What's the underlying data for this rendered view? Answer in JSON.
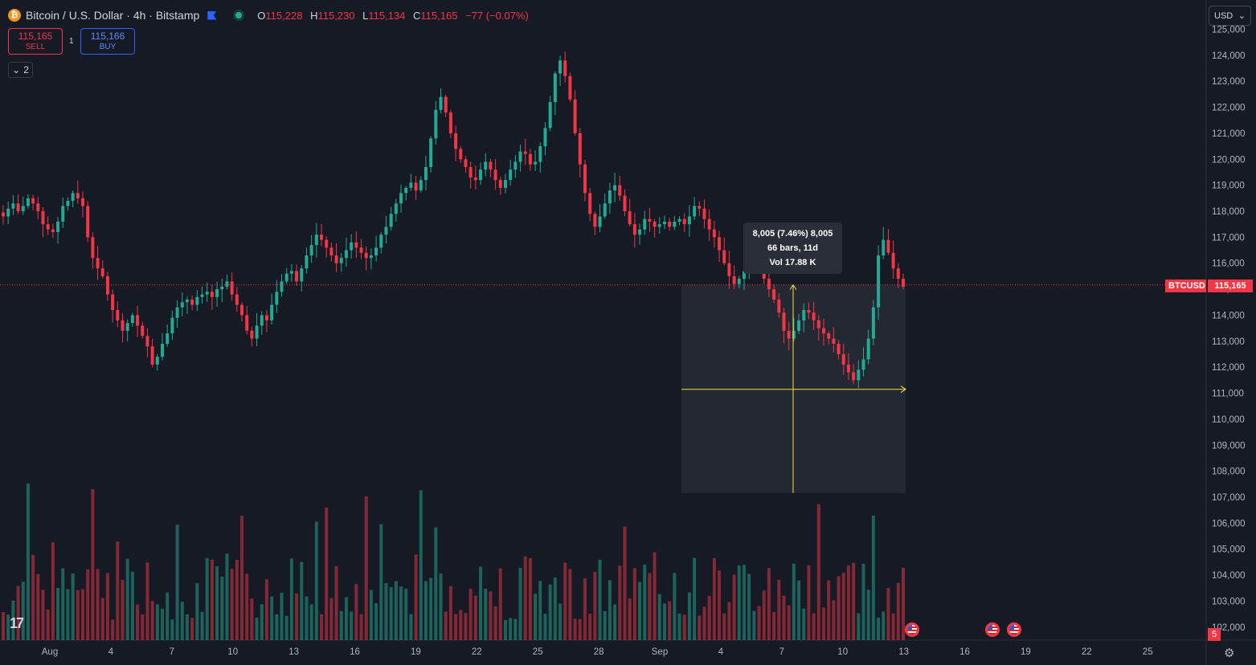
{
  "header": {
    "symbol_icon": "bitcoin-icon",
    "title": "Bitcoin / U.S. Dollar · 4h · Bitstamp",
    "ohlc": {
      "o_label": "O",
      "o": "115,228",
      "h_label": "H",
      "h": "115,230",
      "l_label": "L",
      "l": "115,134",
      "c_label": "C",
      "c": "115,165",
      "change": "−77 (−0.07%)"
    }
  },
  "trade": {
    "sell_price": "115,165",
    "sell_label": "SELL",
    "spread": "1",
    "buy_price": "115,166",
    "buy_label": "BUY"
  },
  "indicators_toggle": "2",
  "currency": "USD",
  "tooltip": {
    "line1": "8,005 (7.46%) 8,005",
    "line2": "66 bars, 11d",
    "line3": "Vol 17.88 K"
  },
  "last_price": {
    "symbol": "BTCUSD",
    "price": "115,165"
  },
  "event_badge_count": "5",
  "colors": {
    "up": "#22ab94",
    "down": "#f23645",
    "background": "#161a25",
    "measure": "#f0e442"
  },
  "chart_data": {
    "type": "candlestick",
    "symbol": "BTCUSD",
    "interval": "4h",
    "y_range": [
      101500,
      125200
    ],
    "y_ticks": [
      "125,000",
      "124,000",
      "123,000",
      "122,000",
      "121,000",
      "120,000",
      "119,000",
      "118,000",
      "117,000",
      "116,000",
      "115,000",
      "114,000",
      "113,000",
      "112,000",
      "111,000",
      "110,000",
      "109,000",
      "108,000",
      "107,000",
      "106,000",
      "105,000",
      "104,000",
      "103,000",
      "102,000"
    ],
    "x_ticks": [
      "Aug",
      "4",
      "7",
      "10",
      "13",
      "16",
      "19",
      "22",
      "25",
      "28",
      "Sep",
      "4",
      "7",
      "10",
      "13",
      "16",
      "19",
      "22",
      "25"
    ],
    "visible_candles": 188,
    "closes_approx": [
      117800,
      118100,
      118300,
      118000,
      118200,
      118500,
      118300,
      118000,
      117500,
      117300,
      117200,
      117600,
      118200,
      118400,
      118700,
      118500,
      118200,
      117000,
      116200,
      115800,
      115500,
      114800,
      114200,
      113800,
      113400,
      113700,
      114000,
      113600,
      113200,
      112800,
      112100,
      112400,
      112900,
      113300,
      113900,
      114300,
      114500,
      114600,
      114400,
      114700,
      114800,
      114900,
      114700,
      115000,
      115100,
      115300,
      114800,
      114400,
      114000,
      113400,
      113100,
      113600,
      114000,
      113800,
      114400,
      114900,
      115300,
      115600,
      115700,
      115300,
      115800,
      116300,
      116700,
      117100,
      116900,
      116600,
      116300,
      116000,
      116200,
      116500,
      116800,
      116600,
      116400,
      116200,
      116300,
      116600,
      117100,
      117400,
      117900,
      118300,
      118700,
      118900,
      119100,
      118800,
      119200,
      119700,
      120800,
      121900,
      122400,
      121800,
      121000,
      120400,
      120000,
      119700,
      119300,
      119200,
      119600,
      119900,
      119600,
      119200,
      118900,
      119200,
      119600,
      119900,
      120300,
      120200,
      119800,
      119900,
      120500,
      121200,
      122200,
      123300,
      123800,
      123200,
      122300,
      121000,
      119800,
      118700,
      117900,
      117400,
      117800,
      118300,
      118800,
      119000,
      118600,
      118000,
      117500,
      117100,
      117300,
      117700,
      117600,
      117400,
      117500,
      117600,
      117400,
      117600,
      117700,
      117500,
      117800,
      118200,
      118100,
      117700,
      117300,
      117000,
      116500,
      116000,
      115500,
      115200,
      115400,
      115700,
      116000,
      116300,
      115800,
      115400,
      115000,
      114600,
      114100,
      113400,
      113100,
      113400,
      113800,
      114200,
      114100,
      113800,
      113500,
      113300,
      113100,
      112900,
      112500,
      112100,
      111800,
      111500,
      111900,
      112300,
      113100,
      114300,
      116300,
      116900,
      116400,
      115800,
      115400,
      115100
    ]
  }
}
